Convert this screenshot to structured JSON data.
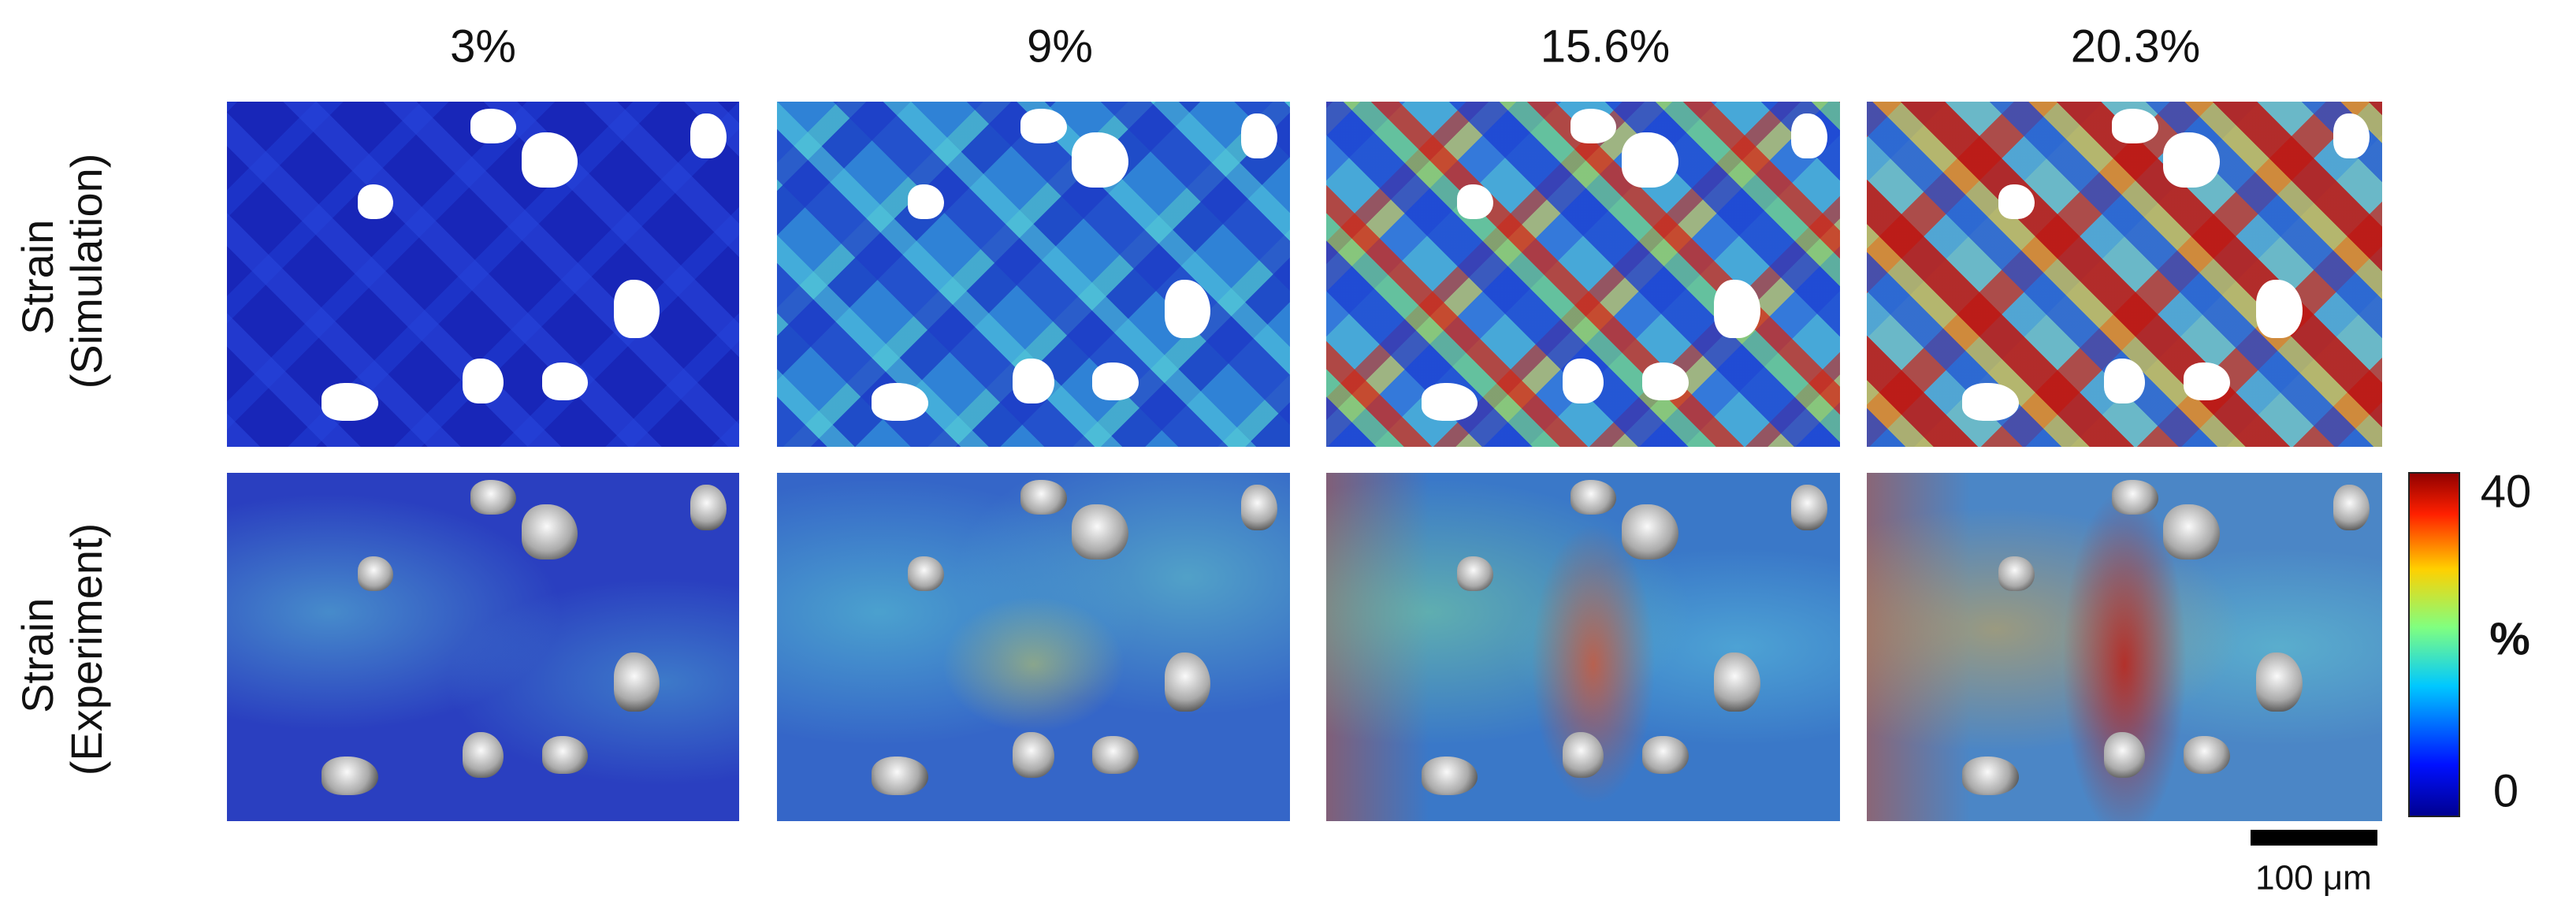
{
  "columns": [
    "3%",
    "9%",
    "15.6%",
    "20.3%"
  ],
  "rows": [
    {
      "line1": "Strain",
      "line2": "(Simulation)"
    },
    {
      "line1": "Strain",
      "line2": "(Experiment)"
    }
  ],
  "colorbar": {
    "max": 40,
    "unit": "%",
    "min": 0
  },
  "scale_bar": "100 μm"
}
